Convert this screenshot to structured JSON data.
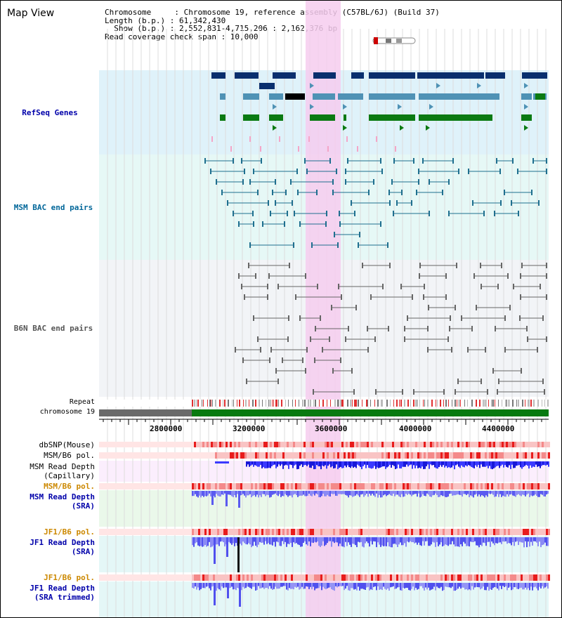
{
  "title": "Map View",
  "info": {
    "chromosome": "Chromosome     : Chromosome 19, reference assembly (C57BL/6J) (Build 37)",
    "length": "Length (b.p.) : 61,342,430",
    "show": "  Show (b.p.) : 2,552,831-4,715,206 : 2,162,376 bp",
    "coverage": "Read coverage check span : 10,000"
  },
  "tracks": {
    "refseq": {
      "label": "RefSeq Genes",
      "color": "#0000aa"
    },
    "msm_bac": {
      "label": "MSM BAC end pairs",
      "color": "#006699"
    },
    "b6n_bac": {
      "label": "B6N BAC end pairs",
      "color": "#555555"
    },
    "repeat": {
      "label": "Repeat"
    },
    "chromosome": {
      "label": "chromosome 19"
    },
    "dbsnp": {
      "label": "dbSNP(Mouse)"
    },
    "msm_b6_pol_cap": {
      "label": "MSM/B6 pol."
    },
    "msm_depth_cap": {
      "label1": "MSM Read Depth",
      "label2": "(Capillary)"
    },
    "msm_b6_pol_sra": {
      "label": "MSM/B6 pol.",
      "color": "#cc8800"
    },
    "msm_depth_sra": {
      "label1": "MSM Read Depth",
      "label2": "(SRA)",
      "color": "#0000aa"
    },
    "jf1_b6_pol": {
      "label": "JF1/B6 pol.",
      "color": "#cc8800"
    },
    "jf1_depth_sra": {
      "label1": "JF1 Read Depth",
      "label2": "(SRA)",
      "color": "#0000aa"
    },
    "jf1_b6_pol2": {
      "label": "JF1/B6 pol.",
      "color": "#cc8800"
    },
    "jf1_depth_trim": {
      "label1": "JF1 Read Depth",
      "label2": "(SRA trimmed)",
      "color": "#0000aa"
    }
  },
  "ruler": {
    "ticks": [
      "2800000",
      "3200000",
      "3600000",
      "4000000",
      "4400000"
    ]
  },
  "colors": {
    "refseq_bg": "#dff2fa",
    "msm_bg": "#e6f8f6",
    "b6n_bg": "#f2f4f7",
    "highlight": "#f6cdef",
    "gene_dark": "#0a2f6e",
    "gene_mid": "#4f92b5",
    "gene_green": "#0b7a12",
    "msm_pair": "#1f6f8f",
    "b6n_pair": "#666666",
    "chrom_grey": "#6a6a6a",
    "chrom_green": "#087a10",
    "depth_blue": "#1a1ae8",
    "depth_light": "#7b7bf0",
    "pol_red": "#f07070"
  }
}
